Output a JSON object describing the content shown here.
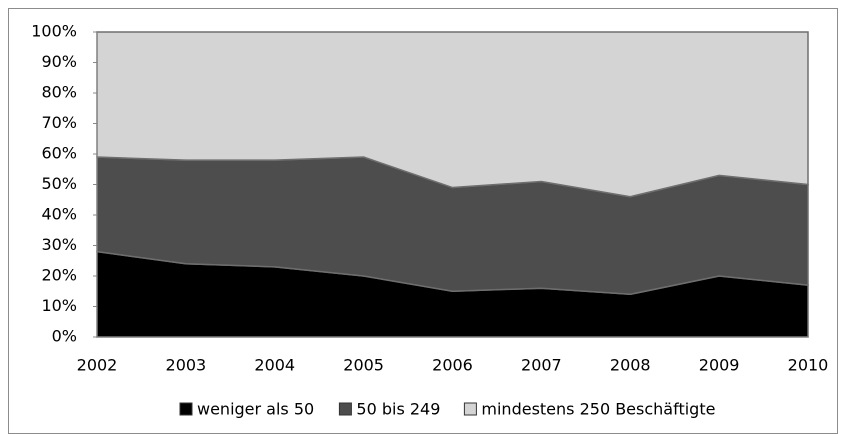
{
  "chart_data": {
    "type": "area",
    "stacked": true,
    "categories": [
      "2002",
      "2003",
      "2004",
      "2005",
      "2006",
      "2007",
      "2008",
      "2009",
      "2010"
    ],
    "series": [
      {
        "name": "weniger als 50",
        "color": "#000000",
        "values": [
          28,
          24,
          23,
          20,
          15,
          16,
          14,
          20,
          17
        ]
      },
      {
        "name": "50 bis 249",
        "color": "#4d4d4d",
        "values": [
          31,
          34,
          35,
          39,
          34,
          35,
          32,
          33,
          33
        ]
      },
      {
        "name": "mindestens 250 Beschäftigte",
        "color": "#d4d4d4",
        "values": [
          41,
          42,
          42,
          41,
          51,
          49,
          54,
          47,
          50
        ]
      }
    ],
    "ylim": [
      0,
      100
    ],
    "yticks": [
      {
        "value": 0,
        "label": "0%"
      },
      {
        "value": 10,
        "label": "10%"
      },
      {
        "value": 20,
        "label": "20%"
      },
      {
        "value": 30,
        "label": "30%"
      },
      {
        "value": 40,
        "label": "40%"
      },
      {
        "value": 50,
        "label": "50%"
      },
      {
        "value": 60,
        "label": "60%"
      },
      {
        "value": 70,
        "label": "70%"
      },
      {
        "value": 80,
        "label": "80%"
      },
      {
        "value": 90,
        "label": "90%"
      },
      {
        "value": 100,
        "label": "100%"
      }
    ],
    "legend": "bottom"
  }
}
